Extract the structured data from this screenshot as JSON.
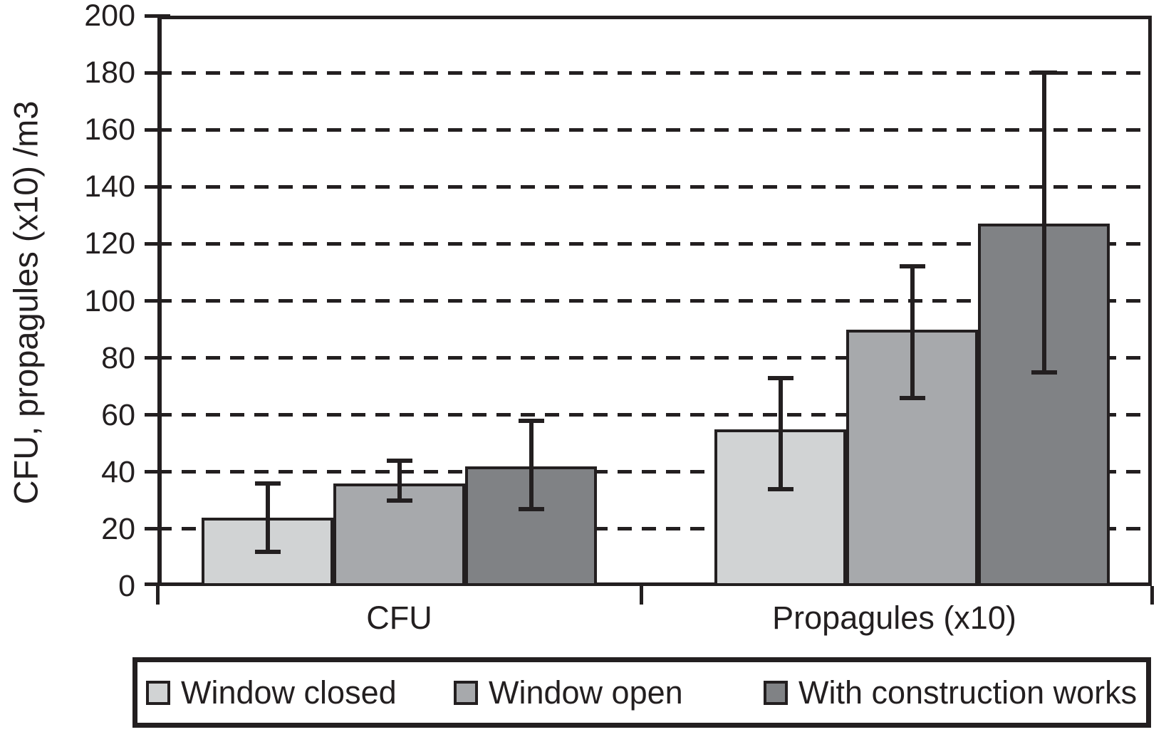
{
  "chart_data": {
    "type": "bar",
    "title": "",
    "xlabel": "",
    "ylabel": "CFU, propagules (x10) /m3",
    "categories": [
      "CFU",
      "Propagules (x10)"
    ],
    "series": [
      {
        "name": "Window closed",
        "color": "#d1d3d4",
        "values": [
          24,
          55
        ],
        "error_low": [
          12,
          34
        ],
        "error_high": [
          36,
          73
        ]
      },
      {
        "name": "Window open",
        "color": "#a7a9ac",
        "values": [
          36,
          90
        ],
        "error_low": [
          30,
          66
        ],
        "error_high": [
          44,
          112
        ]
      },
      {
        "name": "With construction works",
        "color": "#808285",
        "values": [
          42,
          127
        ],
        "error_low": [
          27,
          75
        ],
        "error_high": [
          58,
          180
        ]
      }
    ],
    "ylim": [
      0,
      200
    ],
    "yticks": [
      0,
      20,
      40,
      60,
      80,
      100,
      120,
      140,
      160,
      180,
      200
    ],
    "grid": "horizontal-dashed",
    "legend_position": "bottom",
    "axis_color": "#231f20",
    "background_color": "#ffffff"
  }
}
